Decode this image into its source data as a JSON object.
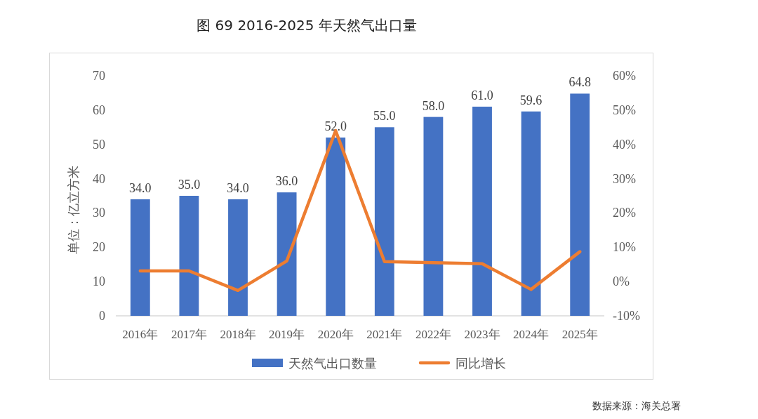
{
  "chart_data": {
    "type": "bar",
    "title": "图 69 2016-2025 年天然气出口量",
    "categories": [
      "2016年",
      "2017年",
      "2018年",
      "2019年",
      "2020年",
      "2021年",
      "2022年",
      "2023年",
      "2024年",
      "2025年"
    ],
    "ylabel": "单位：亿立方米",
    "ylim": [
      0,
      70
    ],
    "yticks": [
      0,
      10,
      20,
      30,
      40,
      50,
      60,
      70
    ],
    "y2lim": [
      -10,
      60
    ],
    "y2ticks": [
      {
        "value": -10,
        "label": "-10%"
      },
      {
        "value": 0,
        "label": "0%"
      },
      {
        "value": 10,
        "label": "10%"
      },
      {
        "value": 20,
        "label": "20%"
      },
      {
        "value": 30,
        "label": "30%"
      },
      {
        "value": 40,
        "label": "40%"
      },
      {
        "value": 50,
        "label": "50%"
      },
      {
        "value": 60,
        "label": "60%"
      }
    ],
    "series": [
      {
        "name": "天然气出口数量",
        "color": "#4472c4",
        "values": [
          34.0,
          35.0,
          34.0,
          36.0,
          52.0,
          55.0,
          58.0,
          61.0,
          59.6,
          64.8
        ],
        "value_labels": [
          "34.0",
          "35.0",
          "34.0",
          "36.0",
          "52.0",
          "55.0",
          "58.0",
          "61.0",
          "59.6",
          "64.8"
        ]
      },
      {
        "name": "同比增长",
        "type": "line",
        "axis": "y2",
        "color": "#ed7d31",
        "values": [
          3.1,
          3.1,
          -2.6,
          6.0,
          44.0,
          5.8,
          5.5,
          5.2,
          -2.3,
          8.7
        ]
      }
    ],
    "legend": "bottom",
    "grid": false,
    "annotations": [
      "数据来源：海关总署"
    ]
  }
}
